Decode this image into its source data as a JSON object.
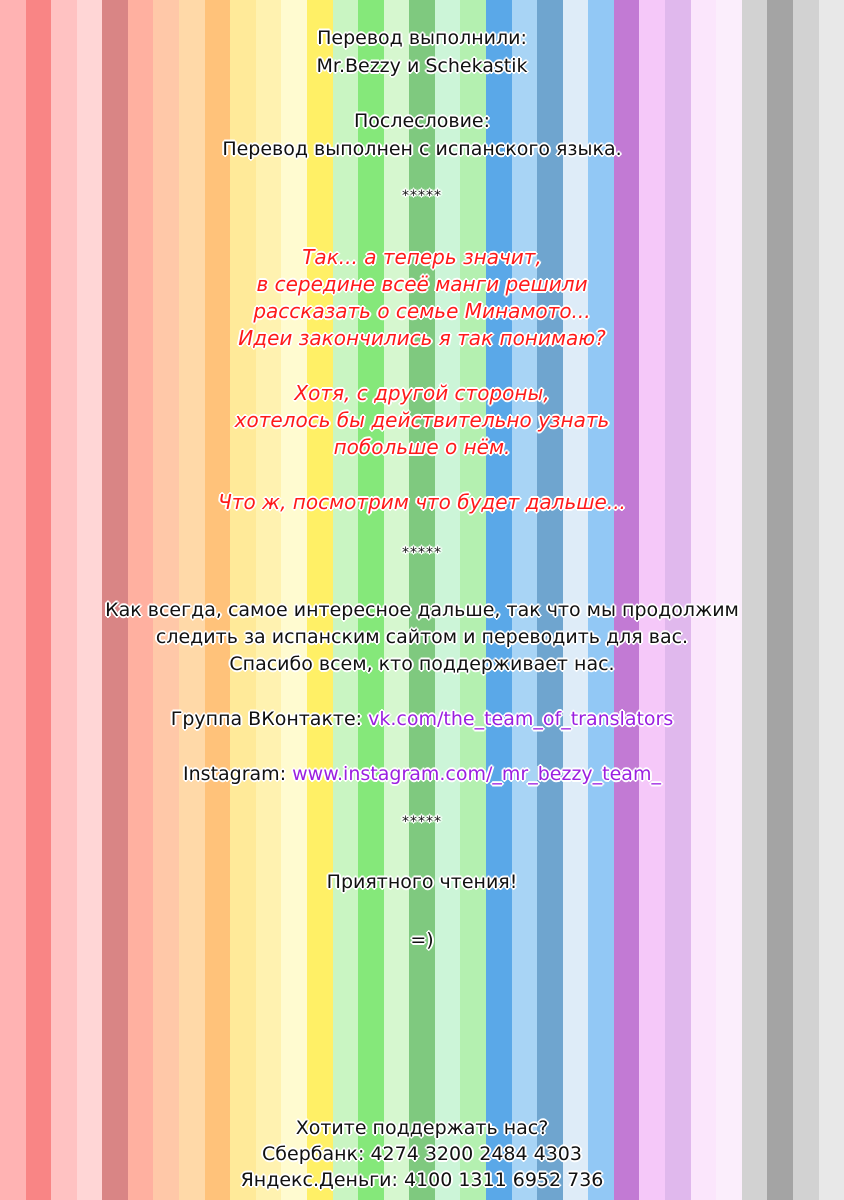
{
  "colors": {
    "stripes": [
      "#ffb3b3",
      "#f98585",
      "#ffc2c2",
      "#ffd6d6",
      "#d98585",
      "#ffb0a0",
      "#ffc8a8",
      "#ffd9a8",
      "#ffc27a",
      "#ffea99",
      "#fff2b0",
      "#fffbd0",
      "#fff066",
      "#c9f5c2",
      "#85e87a",
      "#d6f7cf",
      "#7fc97f",
      "#ccf5d8",
      "#b4f0b0",
      "#5aa8e8",
      "#a8d4f5",
      "#6fa5cf",
      "#deecf8",
      "#92c8f5",
      "#c27ad4",
      "#f5c8f9",
      "#e0b8ed",
      "#fbe6fc",
      "#fbeefc",
      "#d2d2d2",
      "#a4a4a4",
      "#d2d2d2",
      "#e8e8e8"
    ],
    "red_text": "#ff1a1a",
    "link": "#9b1fe0"
  },
  "header": {
    "translated_by_label": "Перевод выполнили:",
    "translators": "Mr.Bezzy и Schekastik"
  },
  "afterword": {
    "title": "Послесловие:",
    "text": "Перевод выполнен с испанского языка."
  },
  "separators": [
    "*****",
    "*****",
    "*****"
  ],
  "red_paragraphs": {
    "p1": [
      "Так... а теперь значит,",
      "в середине всеё манги решили",
      "рассказать о семье Минамото...",
      "Идеи закончились я так понимаю?"
    ],
    "p2": [
      "Хотя, с другой стороны,",
      "хотелось бы действительно узнать",
      "побольше о нём."
    ],
    "p3": [
      "Что ж, посмотрим что будет дальше..."
    ]
  },
  "notes": [
    "Как всегда, самое интересное дальше, так что мы продолжим",
    "следить за испанским сайтом и переводить для вас.",
    "Спасибо всем, кто поддерживает нас."
  ],
  "links": {
    "vk_label": "Группа ВКонтакте: ",
    "vk_url": "vk.com/the_team_of_translators",
    "instagram_label": "Instagram: ",
    "instagram_url": "www.instagram.com/_mr_bezzy_team_"
  },
  "closing": {
    "enjoy": "Приятного чтения!",
    "smiley": "=)"
  },
  "support": {
    "title": "Хотите поддержать нас?",
    "sberbank": "Сбербанк: 4274 3200 2484 4303",
    "yandex": "Яндекс.Деньги: 4100 1311 6952 736"
  }
}
